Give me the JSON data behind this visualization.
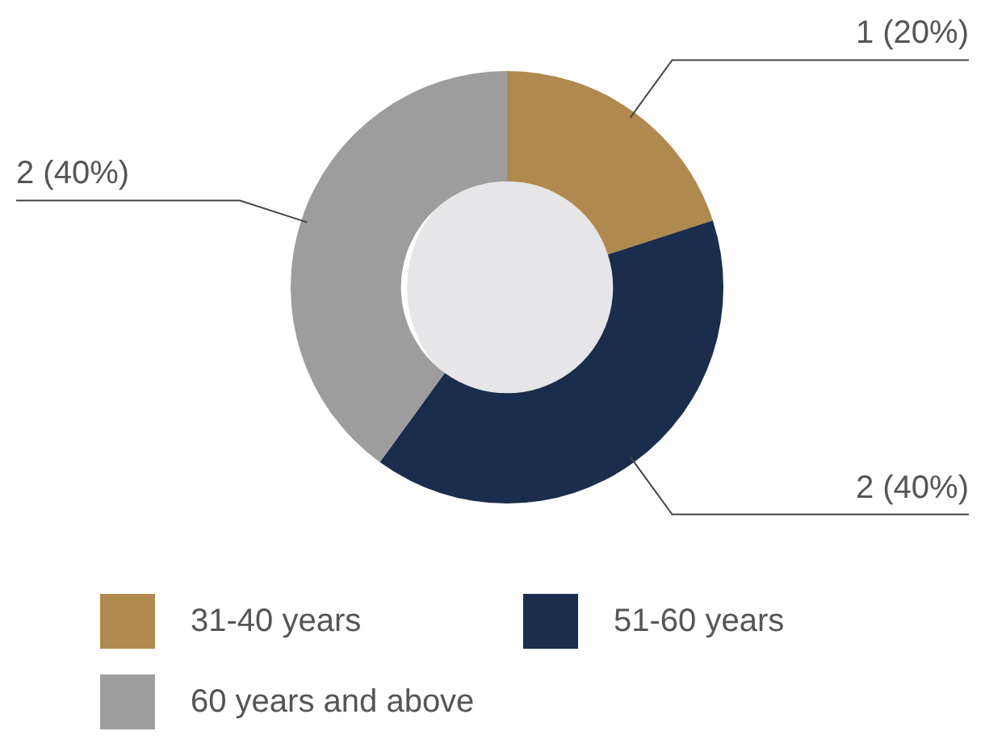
{
  "chart_data": {
    "type": "donut",
    "categories": [
      "31-40 years",
      "51-60 years",
      "60 years and above"
    ],
    "values": [
      1,
      2,
      2
    ],
    "colors": [
      "#b0894e",
      "#1b2d4c",
      "#9d9d9d"
    ],
    "value_labels": [
      "1 (20%)",
      "2 (40%)",
      "2 (40%)"
    ],
    "legend": "bottom"
  }
}
